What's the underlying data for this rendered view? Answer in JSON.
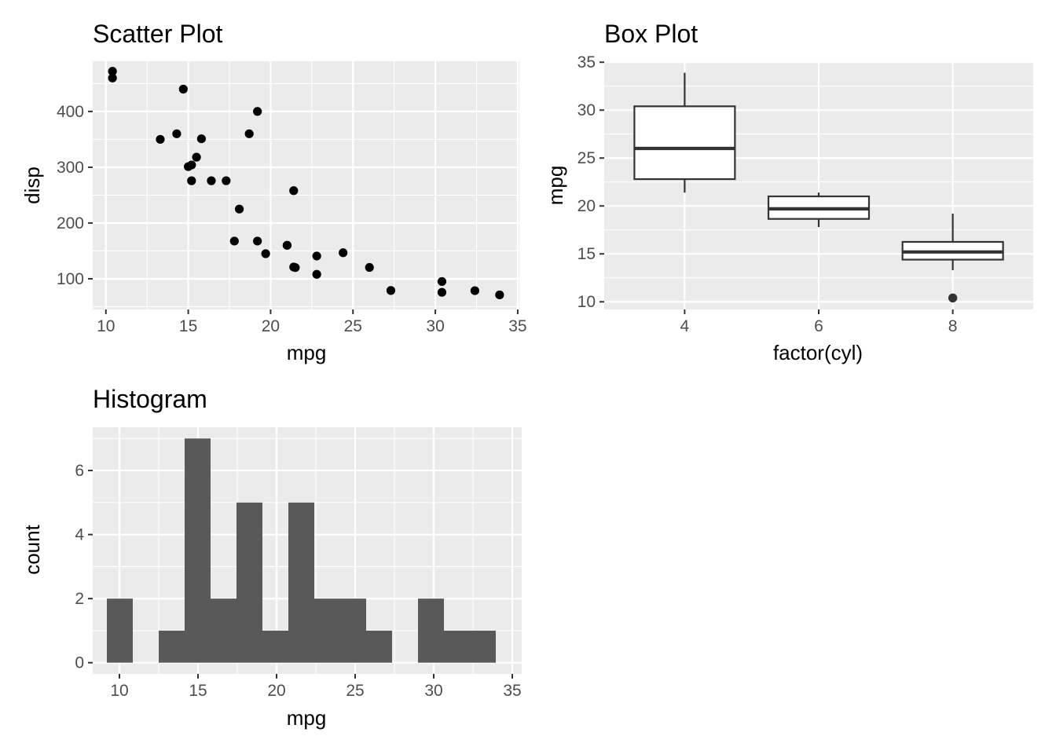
{
  "chart_data": [
    {
      "type": "scatter",
      "title": "Scatter Plot",
      "xlabel": "mpg",
      "ylabel": "disp",
      "xlim": [
        9.2,
        35.1
      ],
      "ylim": [
        45.0,
        490.0
      ],
      "x_ticks": [
        10,
        15,
        20,
        25,
        30,
        35
      ],
      "y_ticks": [
        100,
        200,
        300,
        400
      ],
      "grid": true,
      "colors": {
        "panel": "#ebebeb",
        "grid_major": "#ffffff",
        "point": "#000000"
      },
      "points": [
        [
          21.0,
          160
        ],
        [
          21.0,
          160
        ],
        [
          22.8,
          108
        ],
        [
          21.4,
          258
        ],
        [
          18.7,
          360
        ],
        [
          18.1,
          225
        ],
        [
          14.3,
          360
        ],
        [
          24.4,
          146.7
        ],
        [
          22.8,
          140.8
        ],
        [
          19.2,
          167.6
        ],
        [
          17.8,
          167.6
        ],
        [
          16.4,
          275.8
        ],
        [
          17.3,
          275.8
        ],
        [
          15.2,
          275.8
        ],
        [
          10.4,
          472
        ],
        [
          10.4,
          460
        ],
        [
          14.7,
          440
        ],
        [
          32.4,
          78.7
        ],
        [
          30.4,
          75.7
        ],
        [
          33.9,
          71.1
        ],
        [
          21.5,
          120.1
        ],
        [
          15.5,
          318
        ],
        [
          15.2,
          304
        ],
        [
          13.3,
          350
        ],
        [
          19.2,
          400
        ],
        [
          27.3,
          79
        ],
        [
          26.0,
          120.3
        ],
        [
          30.4,
          95.1
        ],
        [
          15.8,
          351
        ],
        [
          19.7,
          145
        ],
        [
          15.0,
          301
        ],
        [
          21.4,
          121
        ]
      ]
    },
    {
      "type": "box",
      "title": "Box Plot",
      "xlabel": "factor(cyl)",
      "ylabel": "mpg",
      "categories": [
        "4",
        "6",
        "8"
      ],
      "ylim": [
        9.2,
        35.1
      ],
      "y_ticks": [
        10,
        15,
        20,
        25,
        30,
        35
      ],
      "grid": true,
      "colors": {
        "panel": "#ebebeb",
        "grid_major": "#ffffff",
        "box_fill": "#ffffff",
        "box_line": "#333333"
      },
      "boxes": [
        {
          "q1": 22.8,
          "median": 26.0,
          "q3": 30.4,
          "whisker_low": 21.4,
          "whisker_high": 33.9,
          "outliers": []
        },
        {
          "q1": 18.65,
          "median": 19.7,
          "q3": 21.0,
          "whisker_low": 17.8,
          "whisker_high": 21.4,
          "outliers": []
        },
        {
          "q1": 14.4,
          "median": 15.2,
          "q3": 16.25,
          "whisker_low": 13.3,
          "whisker_high": 19.2,
          "outliers": [
            10.4,
            10.4
          ]
        }
      ]
    },
    {
      "type": "histogram",
      "title": "Histogram",
      "xlabel": "mpg",
      "ylabel": "count",
      "xlim": [
        8.3,
        35.6
      ],
      "ylim": [
        -0.35,
        7.35
      ],
      "x_ticks": [
        10,
        15,
        20,
        25,
        30,
        35
      ],
      "y_ticks": [
        0,
        2,
        4,
        6
      ],
      "grid": true,
      "colors": {
        "panel": "#ebebeb",
        "grid_major": "#ffffff",
        "bar": "#595959"
      },
      "bins": [
        {
          "x0": 9.2,
          "x1": 10.85,
          "count": 2
        },
        {
          "x0": 10.85,
          "x1": 12.5,
          "count": 0
        },
        {
          "x0": 12.5,
          "x1": 14.15,
          "count": 1
        },
        {
          "x0": 14.15,
          "x1": 15.8,
          "count": 7
        },
        {
          "x0": 15.8,
          "x1": 17.45,
          "count": 2
        },
        {
          "x0": 17.45,
          "x1": 19.1,
          "count": 5
        },
        {
          "x0": 19.1,
          "x1": 20.75,
          "count": 1
        },
        {
          "x0": 20.75,
          "x1": 22.4,
          "count": 5
        },
        {
          "x0": 22.4,
          "x1": 24.05,
          "count": 2
        },
        {
          "x0": 24.05,
          "x1": 25.7,
          "count": 2
        },
        {
          "x0": 25.7,
          "x1": 27.35,
          "count": 1
        },
        {
          "x0": 27.35,
          "x1": 29.0,
          "count": 0
        },
        {
          "x0": 29.0,
          "x1": 30.65,
          "count": 2
        },
        {
          "x0": 30.65,
          "x1": 32.3,
          "count": 1
        },
        {
          "x0": 32.3,
          "x1": 33.95,
          "count": 1
        }
      ]
    }
  ]
}
